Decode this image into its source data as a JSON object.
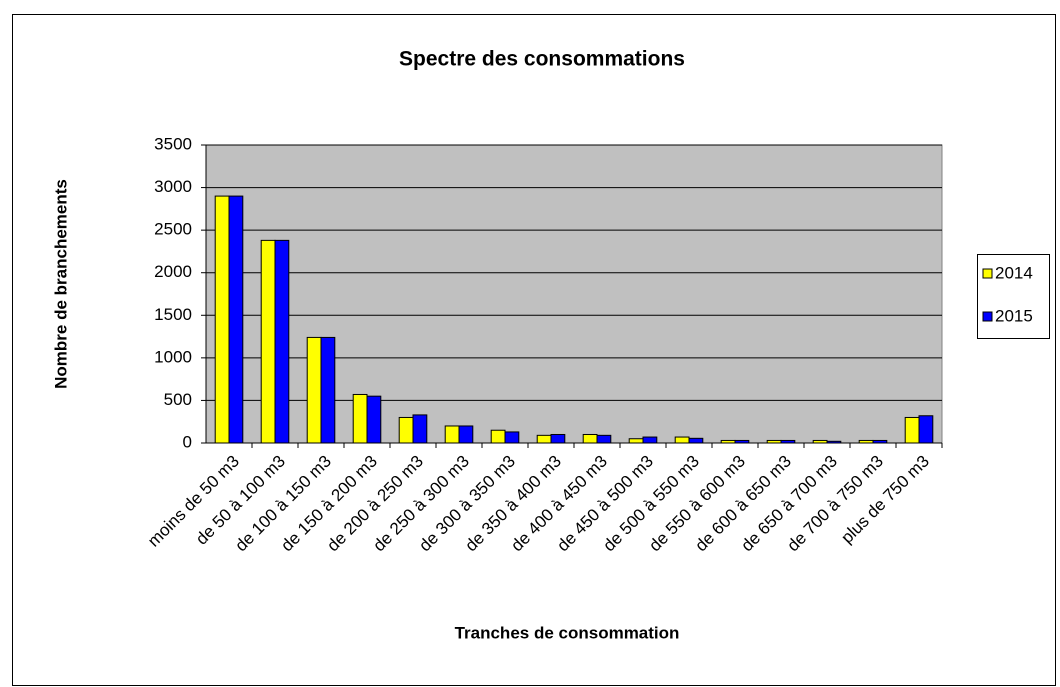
{
  "chart_data": {
    "type": "bar",
    "title": "Spectre des consommations",
    "xlabel": "Tranches de consommation",
    "ylabel": "Nombre de branchements",
    "categories": [
      "moins de 50 m3",
      "de 50 à 100 m3",
      "de 100 à 150 m3",
      "de 150 à 200 m3",
      "de 200 à 250 m3",
      "de 250 à 300 m3",
      "de 300 à 350 m3",
      "de 350 à 400 m3",
      "de 400 à 450 m3",
      "de 450 à 500 m3",
      "de 500 à 550 m3",
      "de 550 à 600 m3",
      "de 600 à 650 m3",
      "de 650 à 700 m3",
      "de 700 à 750 m3",
      "plus de 750 m3"
    ],
    "series": [
      {
        "name": "2014",
        "color": "#ffff00",
        "values": [
          2900,
          2380,
          1240,
          570,
          300,
          200,
          150,
          90,
          100,
          50,
          70,
          30,
          30,
          30,
          30,
          300
        ]
      },
      {
        "name": "2015",
        "color": "#0000ff",
        "values": [
          2900,
          2380,
          1240,
          550,
          330,
          200,
          130,
          100,
          90,
          70,
          55,
          30,
          30,
          20,
          30,
          320
        ]
      }
    ],
    "ylim": [
      0,
      3500
    ],
    "yticks": [
      0,
      500,
      1000,
      1500,
      2000,
      2500,
      3000,
      3500
    ],
    "grid": true,
    "legend": "right"
  }
}
